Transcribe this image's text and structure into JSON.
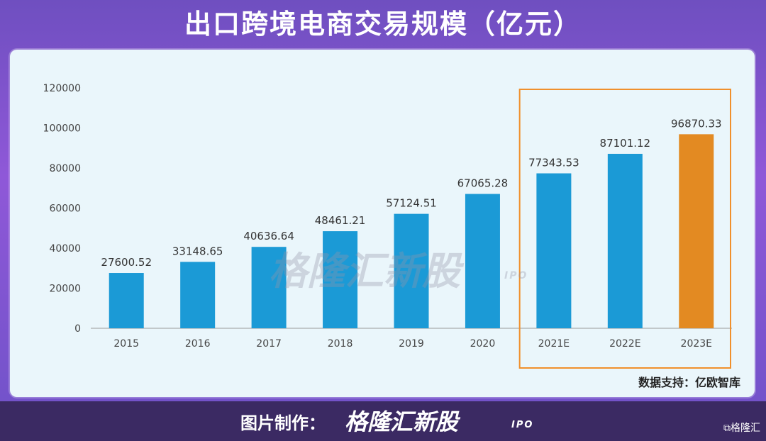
{
  "page": {
    "title": "出口跨境电商交易规模（亿元）",
    "source": "数据支持：亿欧智库",
    "footer_label": "图片制作：",
    "footer_logo": "格隆汇新股",
    "footer_ipo": "IPO",
    "corner_logo": "⧉格隆汇",
    "watermark": "格隆汇新股",
    "watermark_ipo": "IPO"
  },
  "colors": {
    "bar": "#1b9ad6",
    "bar_highlight": "#e38a22",
    "highlight_box": "#f0902c",
    "axis": "#999999",
    "tick_text": "#444444"
  },
  "chart_data": {
    "type": "bar",
    "title": "出口跨境电商交易规模（亿元）",
    "categories": [
      "2015",
      "2016",
      "2017",
      "2018",
      "2019",
      "2020",
      "2021E",
      "2022E",
      "2023E"
    ],
    "values": [
      27600.52,
      33148.65,
      40636.64,
      48461.21,
      57124.51,
      67065.28,
      77343.53,
      87101.12,
      96870.33
    ],
    "value_labels": [
      "27600.52",
      "33148.65",
      "40636.64",
      "48461.21",
      "57124.51",
      "67065.28",
      "77343.53",
      "87101.12",
      "96870.33"
    ],
    "highlight_index": 8,
    "boxed_categories": [
      "2021E",
      "2022E",
      "2023E"
    ],
    "ylim": [
      0,
      120000
    ],
    "yticks": [
      0,
      20000,
      40000,
      60000,
      80000,
      100000,
      120000
    ],
    "ytick_labels": [
      "0",
      "20000",
      "40000",
      "60000",
      "80000",
      "100000",
      "120000"
    ],
    "grid": false,
    "legend": "none",
    "xlabel": "",
    "ylabel": ""
  }
}
